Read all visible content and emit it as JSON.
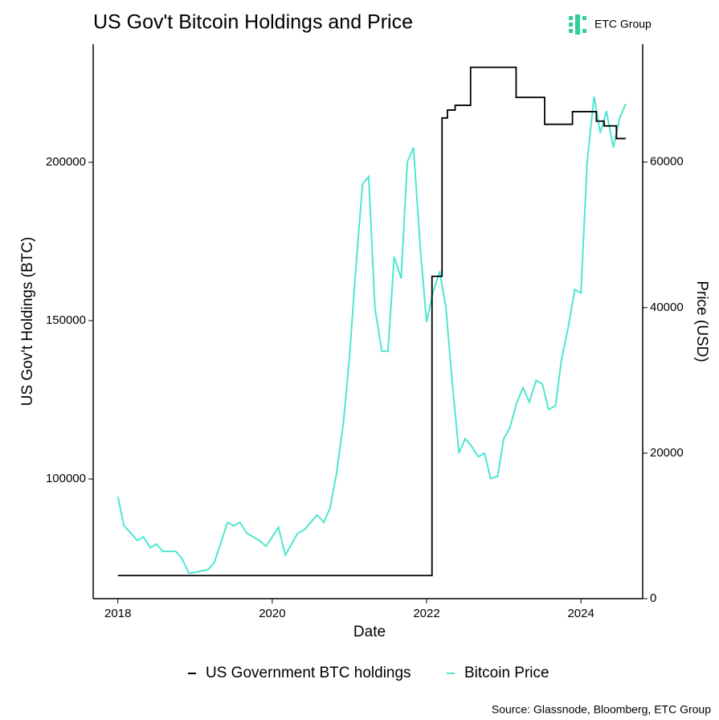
{
  "chart_data": {
    "type": "line",
    "title": "US Gov't Bitcoin Holdings and Price",
    "logo": "ETC Group",
    "source": "Source: Glassnode, Bloomberg, ETC Group",
    "x_label": "Date",
    "y_label": "US Gov't Holdings (BTC)",
    "y2_label": "Price (USD)",
    "xlim": [
      2017.68,
      2024.8
    ],
    "xticks": [
      2018,
      2020,
      2022,
      2024
    ],
    "ylim": [
      62200,
      237300
    ],
    "yticks": [
      100000,
      150000,
      200000
    ],
    "y2lim": [
      0,
      76200
    ],
    "y2ticks": [
      0,
      20000,
      40000,
      60000
    ],
    "grid": false,
    "legend": "bottom",
    "series": [
      {
        "name": "US Government BTC holdings",
        "color": "#000000",
        "axis": "y",
        "x": [
          2018.0,
          2022.07,
          2022.07,
          2022.2,
          2022.2,
          2022.27,
          2022.27,
          2022.37,
          2022.37,
          2022.57,
          2022.57,
          2023.16,
          2023.16,
          2023.53,
          2023.53,
          2023.89,
          2023.89,
          2024.2,
          2024.2,
          2024.3,
          2024.3,
          2024.46,
          2024.46,
          2024.58
        ],
        "values": [
          69500,
          69500,
          164000,
          164000,
          214000,
          214000,
          216500,
          216500,
          218000,
          218000,
          230000,
          230000,
          220500,
          220500,
          212000,
          212000,
          216000,
          216000,
          213000,
          213000,
          211500,
          211500,
          207500,
          207500
        ]
      },
      {
        "name": "Bitcoin Price",
        "color": "#4fe6d0",
        "axis": "y2",
        "x": [
          2018.0,
          2018.08,
          2018.17,
          2018.25,
          2018.33,
          2018.42,
          2018.5,
          2018.58,
          2018.67,
          2018.75,
          2018.83,
          2018.92,
          2019.0,
          2019.08,
          2019.17,
          2019.25,
          2019.33,
          2019.42,
          2019.5,
          2019.58,
          2019.67,
          2019.75,
          2019.83,
          2019.92,
          2020.0,
          2020.08,
          2020.17,
          2020.25,
          2020.33,
          2020.42,
          2020.5,
          2020.58,
          2020.67,
          2020.75,
          2020.83,
          2020.92,
          2021.0,
          2021.08,
          2021.17,
          2021.25,
          2021.33,
          2021.42,
          2021.5,
          2021.58,
          2021.67,
          2021.75,
          2021.83,
          2021.92,
          2022.0,
          2022.08,
          2022.17,
          2022.25,
          2022.33,
          2022.42,
          2022.5,
          2022.58,
          2022.67,
          2022.75,
          2022.83,
          2022.92,
          2023.0,
          2023.08,
          2023.17,
          2023.25,
          2023.33,
          2023.42,
          2023.5,
          2023.58,
          2023.67,
          2023.75,
          2023.83,
          2023.92,
          2024.0,
          2024.08,
          2024.17,
          2024.25,
          2024.33,
          2024.42,
          2024.5,
          2024.58
        ],
        "values": [
          14000,
          10000,
          9000,
          8000,
          8500,
          7000,
          7500,
          6500,
          6500,
          6500,
          5500,
          3500,
          3600,
          3800,
          4000,
          5000,
          7500,
          10500,
          10000,
          10500,
          9000,
          8500,
          8000,
          7200,
          8500,
          9800,
          6000,
          7500,
          9000,
          9500,
          10500,
          11500,
          10500,
          12500,
          17000,
          24000,
          33000,
          45000,
          57000,
          58000,
          40000,
          34000,
          34000,
          47000,
          44000,
          60000,
          62000,
          48000,
          38000,
          42000,
          45000,
          40000,
          30000,
          20000,
          22000,
          21000,
          19500,
          20000,
          16500,
          16800,
          22000,
          23500,
          27000,
          29000,
          27000,
          30000,
          29500,
          26000,
          26500,
          33000,
          37000,
          42500,
          42000,
          60000,
          69000,
          64000,
          67000,
          62000,
          66000,
          68000
        ]
      }
    ]
  }
}
